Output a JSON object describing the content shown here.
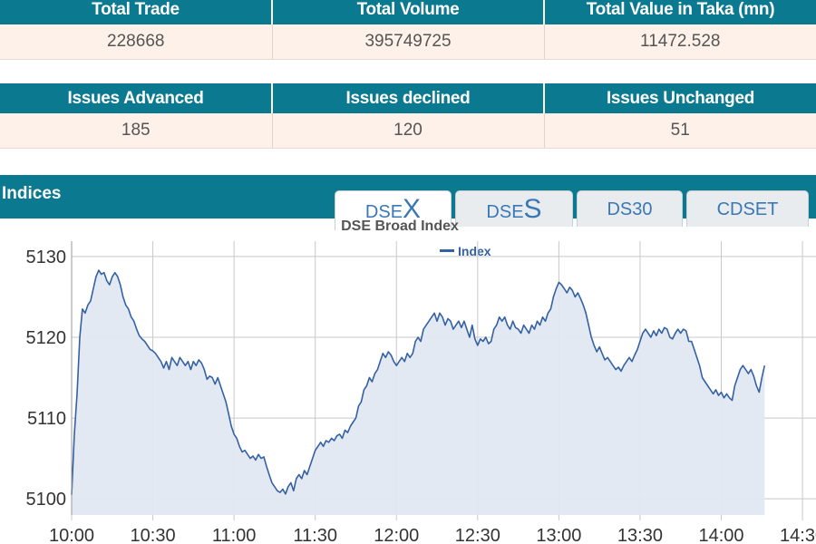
{
  "stats_row1": {
    "headers": [
      "Total Trade",
      "Total Volume",
      "Total Value in Taka (mn)"
    ],
    "values": [
      "228668",
      "395749725",
      "11472.528"
    ]
  },
  "stats_row2": {
    "headers": [
      "Issues Advanced",
      "Issues declined",
      "Issues Unchanged"
    ],
    "values": [
      "185",
      "120",
      "51"
    ]
  },
  "indices": {
    "title": "Indices",
    "tabs": [
      {
        "prefix": "DSE",
        "suffix": "X"
      },
      {
        "prefix": "DSE",
        "suffix": "S"
      },
      {
        "label": "DS30"
      },
      {
        "label": "CDSET"
      }
    ]
  },
  "colors": {
    "header_bg": "#0b7a91",
    "row_bg": "#fdf1e9",
    "series_line": "#3461a4",
    "series_fill": "#e2e8f1",
    "tab_text": "#3a78b5"
  },
  "chart_data": {
    "type": "area",
    "title": "DSE Broad Index",
    "legend_position": "top-center",
    "grid": true,
    "x_ticks": [
      "10:00",
      "10:30",
      "11:00",
      "11:30",
      "12:00",
      "12:30",
      "13:00",
      "13:30",
      "14:00",
      "14:30"
    ],
    "y_ticks": [
      5100,
      5110,
      5120,
      5130
    ],
    "xlim_minutes_after_10": [
      0,
      275
    ],
    "ylim": [
      5098,
      5131
    ],
    "series": [
      {
        "name": "Index",
        "points": [
          [
            0,
            5100.5
          ],
          [
            1,
            5108
          ],
          [
            2,
            5113
          ],
          [
            3,
            5120
          ],
          [
            4,
            5123.5
          ],
          [
            5,
            5123
          ],
          [
            6,
            5124
          ],
          [
            7,
            5124.5
          ],
          [
            8,
            5126
          ],
          [
            9,
            5127.5
          ],
          [
            10,
            5128.3
          ],
          [
            11,
            5127.8
          ],
          [
            12,
            5128
          ],
          [
            13,
            5127
          ],
          [
            14,
            5126.5
          ],
          [
            15,
            5127.5
          ],
          [
            16,
            5128
          ],
          [
            17,
            5127.5
          ],
          [
            18,
            5126.5
          ],
          [
            19,
            5125
          ],
          [
            20,
            5124
          ],
          [
            21,
            5123.5
          ],
          [
            22,
            5122.5
          ],
          [
            23,
            5122
          ],
          [
            24,
            5121
          ],
          [
            25,
            5120.2
          ],
          [
            26,
            5119.8
          ],
          [
            27,
            5119.5
          ],
          [
            28,
            5119
          ],
          [
            29,
            5118.5
          ],
          [
            30,
            5118.3
          ],
          [
            31,
            5118
          ],
          [
            32,
            5117.5
          ],
          [
            33,
            5117
          ],
          [
            34,
            5116.2
          ],
          [
            35,
            5117
          ],
          [
            36,
            5116
          ],
          [
            37,
            5117.5
          ],
          [
            38,
            5117
          ],
          [
            39,
            5116.5
          ],
          [
            40,
            5117.5
          ],
          [
            41,
            5117
          ],
          [
            42,
            5116.5
          ],
          [
            43,
            5117
          ],
          [
            44,
            5116
          ],
          [
            45,
            5117
          ],
          [
            46,
            5116.5
          ],
          [
            47,
            5117.2
          ],
          [
            48,
            5116.8
          ],
          [
            49,
            5116
          ],
          [
            50,
            5114.8
          ],
          [
            51,
            5115.2
          ],
          [
            52,
            5115
          ],
          [
            53,
            5114.2
          ],
          [
            54,
            5115
          ],
          [
            55,
            5114
          ],
          [
            56,
            5113
          ],
          [
            57,
            5112
          ],
          [
            58,
            5110.5
          ],
          [
            59,
            5109
          ],
          [
            60,
            5108
          ],
          [
            61,
            5107.5
          ],
          [
            62,
            5106.5
          ],
          [
            63,
            5105.8
          ],
          [
            64,
            5106
          ],
          [
            65,
            5105.5
          ],
          [
            66,
            5105
          ],
          [
            67,
            5105.3
          ],
          [
            68,
            5104.8
          ],
          [
            69,
            5105.5
          ],
          [
            70,
            5105
          ],
          [
            71,
            5105.2
          ],
          [
            72,
            5104
          ],
          [
            73,
            5103
          ],
          [
            74,
            5102
          ],
          [
            75,
            5101.5
          ],
          [
            76,
            5101
          ],
          [
            77,
            5100.8
          ],
          [
            78,
            5101.2
          ],
          [
            79,
            5100.6
          ],
          [
            80,
            5101.5
          ],
          [
            81,
            5102
          ],
          [
            82,
            5101
          ],
          [
            83,
            5102.5
          ],
          [
            84,
            5103
          ],
          [
            85,
            5102.5
          ],
          [
            86,
            5103.5
          ],
          [
            87,
            5103
          ],
          [
            88,
            5104
          ],
          [
            89,
            5105
          ],
          [
            90,
            5106
          ],
          [
            91,
            5106.5
          ],
          [
            92,
            5107
          ],
          [
            93,
            5106.5
          ],
          [
            94,
            5107.2
          ],
          [
            95,
            5107
          ],
          [
            96,
            5107.5
          ],
          [
            97,
            5107.2
          ],
          [
            98,
            5107.8
          ],
          [
            99,
            5108
          ],
          [
            100,
            5107.5
          ],
          [
            101,
            5108.5
          ],
          [
            102,
            5108.2
          ],
          [
            103,
            5109
          ],
          [
            104,
            5109.5
          ],
          [
            105,
            5110
          ],
          [
            106,
            5111.5
          ],
          [
            107,
            5112
          ],
          [
            108,
            5113.5
          ],
          [
            109,
            5114
          ],
          [
            110,
            5115
          ],
          [
            111,
            5114.5
          ],
          [
            112,
            5115.5
          ],
          [
            113,
            5116
          ],
          [
            114,
            5117
          ],
          [
            115,
            5118
          ],
          [
            116,
            5117.5
          ],
          [
            117,
            5118.2
          ],
          [
            118,
            5117.8
          ],
          [
            119,
            5117
          ],
          [
            120,
            5116.5
          ],
          [
            121,
            5117
          ],
          [
            122,
            5117.5
          ],
          [
            123,
            5117
          ],
          [
            124,
            5118
          ],
          [
            125,
            5117.5
          ],
          [
            126,
            5118
          ],
          [
            127,
            5119.5
          ],
          [
            128,
            5120
          ],
          [
            129,
            5119.5
          ],
          [
            130,
            5121
          ],
          [
            131,
            5121.5
          ],
          [
            132,
            5122
          ],
          [
            133,
            5122.5
          ],
          [
            134,
            5123
          ],
          [
            135,
            5122
          ],
          [
            136,
            5123
          ],
          [
            137,
            5122.5
          ],
          [
            138,
            5121.5
          ],
          [
            139,
            5122.3
          ],
          [
            140,
            5122
          ],
          [
            141,
            5121
          ],
          [
            142,
            5121.5
          ],
          [
            143,
            5122
          ],
          [
            144,
            5121.2
          ],
          [
            145,
            5122
          ],
          [
            146,
            5121
          ],
          [
            147,
            5120
          ],
          [
            148,
            5121.5
          ],
          [
            149,
            5119.8
          ],
          [
            150,
            5119
          ],
          [
            151,
            5119.8
          ],
          [
            152,
            5119.5
          ],
          [
            153,
            5120
          ],
          [
            154,
            5119.2
          ],
          [
            155,
            5119.5
          ],
          [
            156,
            5121
          ],
          [
            157,
            5121.5
          ],
          [
            158,
            5122.5
          ],
          [
            159,
            5122
          ],
          [
            160,
            5122.5
          ],
          [
            161,
            5121.5
          ],
          [
            162,
            5121
          ],
          [
            163,
            5122
          ],
          [
            164,
            5121.2
          ],
          [
            165,
            5121
          ],
          [
            166,
            5120.5
          ],
          [
            167,
            5121.5
          ],
          [
            168,
            5121
          ],
          [
            169,
            5120.5
          ],
          [
            170,
            5121.5
          ],
          [
            171,
            5121
          ],
          [
            172,
            5122
          ],
          [
            173,
            5121.5
          ],
          [
            174,
            5122.5
          ],
          [
            175,
            5122
          ],
          [
            176,
            5123
          ],
          [
            177,
            5123.5
          ],
          [
            178,
            5125
          ],
          [
            179,
            5126
          ],
          [
            180,
            5126.8
          ],
          [
            181,
            5126.5
          ],
          [
            182,
            5126
          ],
          [
            183,
            5125.5
          ],
          [
            184,
            5126.2
          ],
          [
            185,
            5125.8
          ],
          [
            186,
            5125
          ],
          [
            187,
            5125.5
          ],
          [
            188,
            5124.8
          ],
          [
            189,
            5124
          ],
          [
            190,
            5123
          ],
          [
            191,
            5121.5
          ],
          [
            192,
            5120
          ],
          [
            193,
            5119
          ],
          [
            194,
            5118.2
          ],
          [
            195,
            5118.8
          ],
          [
            196,
            5118
          ],
          [
            197,
            5117.2
          ],
          [
            198,
            5117.5
          ],
          [
            199,
            5117
          ],
          [
            200,
            5116.5
          ],
          [
            201,
            5116
          ],
          [
            202,
            5116.3
          ],
          [
            203,
            5115.8
          ],
          [
            204,
            5116.5
          ],
          [
            205,
            5117
          ],
          [
            206,
            5117.5
          ],
          [
            207,
            5117
          ],
          [
            208,
            5117.8
          ],
          [
            209,
            5118.5
          ],
          [
            210,
            5119.5
          ],
          [
            211,
            5120.5
          ],
          [
            212,
            5121
          ],
          [
            213,
            5120.5
          ],
          [
            214,
            5120
          ],
          [
            215,
            5120.8
          ],
          [
            216,
            5120.2
          ],
          [
            217,
            5121
          ],
          [
            218,
            5120.5
          ],
          [
            219,
            5121.2
          ],
          [
            220,
            5121
          ],
          [
            221,
            5120
          ],
          [
            222,
            5119.8
          ],
          [
            223,
            5120.5
          ],
          [
            224,
            5121
          ],
          [
            225,
            5120.5
          ],
          [
            226,
            5121
          ],
          [
            227,
            5120.8
          ],
          [
            228,
            5119.5
          ],
          [
            229,
            5119.5
          ],
          [
            230,
            5118.5
          ],
          [
            231,
            5117.5
          ],
          [
            232,
            5116.5
          ],
          [
            233,
            5115
          ],
          [
            234,
            5114.5
          ],
          [
            235,
            5114
          ],
          [
            236,
            5113.5
          ],
          [
            237,
            5113
          ],
          [
            238,
            5113.5
          ],
          [
            239,
            5112.8
          ],
          [
            240,
            5113.2
          ],
          [
            241,
            5112.5
          ],
          [
            242,
            5113
          ],
          [
            243,
            5112.5
          ],
          [
            244,
            5112.2
          ],
          [
            245,
            5114
          ],
          [
            246,
            5115
          ],
          [
            247,
            5116
          ],
          [
            248,
            5116.5
          ],
          [
            249,
            5116
          ],
          [
            250,
            5115.5
          ],
          [
            251,
            5116
          ],
          [
            252,
            5115.2
          ],
          [
            253,
            5114
          ],
          [
            254,
            5113.2
          ],
          [
            255,
            5115
          ],
          [
            256,
            5116.5
          ]
        ]
      }
    ]
  }
}
